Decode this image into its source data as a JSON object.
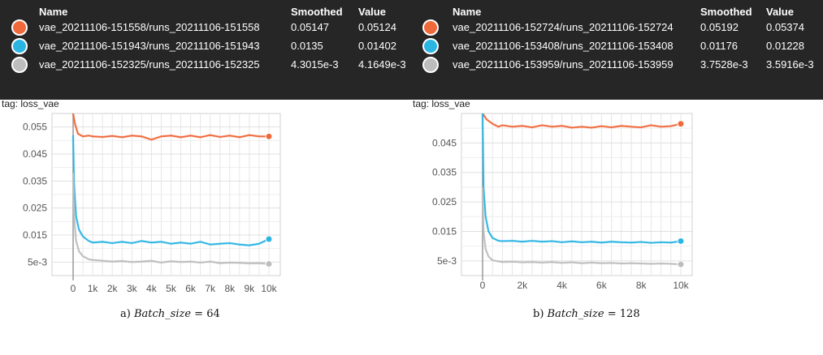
{
  "panels": [
    {
      "tag_title": "loss_vae",
      "tag_line": "tag: loss_vae",
      "caption_prefix": "a)",
      "caption_var": "Batch_size",
      "caption_eq": "= 64",
      "tooltip": {
        "headers": {
          "name": "Name",
          "smoothed": "Smoothed",
          "value": "Value"
        },
        "rows": [
          {
            "name": "vae_20211106-151558/runs_20211106-151558",
            "smoothed": "0.05147",
            "value": "0.05124",
            "color": "#f0693b"
          },
          {
            "name": "vae_20211106-151943/runs_20211106-151943",
            "smoothed": "0.0135",
            "value": "0.01402",
            "color": "#2bb5e3"
          },
          {
            "name": "vae_20211106-152325/runs_20211106-152325",
            "smoothed": "4.3015e-3",
            "value": "4.1649e-3",
            "color": "#bdbdbd"
          }
        ]
      }
    },
    {
      "tag_title": "loss_vae",
      "tag_line": "tag: loss_vae",
      "caption_prefix": "b)",
      "caption_var": "Batch_size",
      "caption_eq": "= 128",
      "tooltip": {
        "headers": {
          "name": "Name",
          "smoothed": "Smoothed",
          "value": "Value"
        },
        "rows": [
          {
            "name": "vae_20211106-152724/runs_20211106-152724",
            "smoothed": "0.05192",
            "value": "0.05374",
            "color": "#f0693b"
          },
          {
            "name": "vae_20211106-153408/runs_20211106-153408",
            "smoothed": "0.01176",
            "value": "0.01228",
            "color": "#2bb5e3"
          },
          {
            "name": "vae_20211106-153959/runs_20211106-153959",
            "smoothed": "3.7528e-3",
            "value": "3.5916e-3",
            "color": "#bdbdbd"
          }
        ]
      }
    }
  ],
  "chart_data": [
    {
      "type": "line",
      "title": "loss_vae",
      "xlabel": "",
      "ylabel": "",
      "xlim": [
        0,
        10000
      ],
      "ylim": [
        0,
        0.06
      ],
      "x_ticks": [
        0,
        1000,
        2000,
        3000,
        4000,
        5000,
        6000,
        7000,
        8000,
        9000,
        10000
      ],
      "x_tick_labels": [
        "0",
        "1k",
        "2k",
        "3k",
        "4k",
        "5k",
        "6k",
        "7k",
        "8k",
        "9k",
        "10k"
      ],
      "y_ticks": [
        0.005,
        0.015,
        0.025,
        0.035,
        0.045,
        0.055
      ],
      "y_tick_labels": [
        "5e-3",
        "0.015",
        "0.025",
        "0.035",
        "0.045",
        "0.055"
      ],
      "grid": true,
      "series": [
        {
          "name": "vae_20211106-151558/runs_20211106-151558",
          "color": "#f0693b",
          "x": [
            0,
            100,
            250,
            500,
            800,
            1000,
            1500,
            2000,
            2500,
            3000,
            3500,
            4000,
            4500,
            5000,
            5500,
            6000,
            6500,
            7000,
            7500,
            8000,
            8500,
            9000,
            9500,
            10000
          ],
          "y": [
            0.06,
            0.056,
            0.0525,
            0.0515,
            0.0518,
            0.0515,
            0.0513,
            0.0517,
            0.0512,
            0.0518,
            0.0515,
            0.0503,
            0.0515,
            0.0518,
            0.0512,
            0.0518,
            0.0512,
            0.052,
            0.0513,
            0.0518,
            0.0512,
            0.052,
            0.0515,
            0.0515
          ]
        },
        {
          "name": "vae_20211106-151943/runs_20211106-151943",
          "color": "#2bb5e3",
          "x": [
            0,
            50,
            150,
            300,
            500,
            800,
            1000,
            1500,
            2000,
            2500,
            3000,
            3500,
            4000,
            4500,
            5000,
            5500,
            6000,
            6500,
            7000,
            7500,
            8000,
            8500,
            9000,
            9500,
            10000
          ],
          "y": [
            0.052,
            0.034,
            0.022,
            0.017,
            0.0145,
            0.0128,
            0.0122,
            0.0125,
            0.012,
            0.0125,
            0.012,
            0.0128,
            0.0122,
            0.0125,
            0.0118,
            0.0122,
            0.0118,
            0.0125,
            0.0115,
            0.0118,
            0.012,
            0.0115,
            0.0112,
            0.0118,
            0.0135
          ]
        },
        {
          "name": "vae_20211106-152325/runs_20211106-152325",
          "color": "#bdbdbd",
          "x": [
            0,
            50,
            150,
            300,
            500,
            800,
            1000,
            1500,
            2000,
            2500,
            3000,
            3500,
            4000,
            4500,
            5000,
            5500,
            6000,
            6500,
            7000,
            7500,
            8000,
            8500,
            9000,
            9500,
            10000
          ],
          "y": [
            0.038,
            0.022,
            0.013,
            0.009,
            0.0072,
            0.006,
            0.0058,
            0.0055,
            0.0052,
            0.0054,
            0.005,
            0.0052,
            0.0055,
            0.0048,
            0.0053,
            0.005,
            0.0052,
            0.0048,
            0.0052,
            0.0046,
            0.0048,
            0.0047,
            0.0045,
            0.0046,
            0.0043
          ]
        }
      ]
    },
    {
      "type": "line",
      "title": "loss_vae",
      "xlabel": "",
      "ylabel": "",
      "xlim": [
        0,
        10000
      ],
      "ylim": [
        0,
        0.055
      ],
      "x_ticks": [
        0,
        2000,
        4000,
        6000,
        8000,
        10000
      ],
      "x_tick_labels": [
        "0",
        "2k",
        "4k",
        "6k",
        "8k",
        "10k"
      ],
      "y_ticks": [
        0.005,
        0.015,
        0.025,
        0.035,
        0.045
      ],
      "y_tick_labels": [
        "5e-3",
        "0.015",
        "0.025",
        "0.035",
        "0.045"
      ],
      "grid": true,
      "series": [
        {
          "name": "vae_20211106-152724/runs_20211106-152724",
          "color": "#f0693b",
          "x": [
            0,
            200,
            500,
            800,
            1000,
            1500,
            2000,
            2500,
            3000,
            3500,
            4000,
            4500,
            5000,
            5500,
            6000,
            6500,
            7000,
            7500,
            8000,
            8500,
            9000,
            9500,
            10000
          ],
          "y": [
            0.055,
            0.053,
            0.0515,
            0.0505,
            0.051,
            0.0505,
            0.0508,
            0.0503,
            0.051,
            0.0505,
            0.0508,
            0.0502,
            0.0505,
            0.0502,
            0.0507,
            0.0503,
            0.0508,
            0.0505,
            0.0503,
            0.051,
            0.0505,
            0.0507,
            0.0515
          ]
        },
        {
          "name": "vae_20211106-153408/runs_20211106-153408",
          "color": "#2bb5e3",
          "x": [
            0,
            50,
            150,
            300,
            500,
            800,
            1000,
            1500,
            2000,
            2500,
            3000,
            3500,
            4000,
            4500,
            5000,
            5500,
            6000,
            6500,
            7000,
            7500,
            8000,
            8500,
            9000,
            9500,
            10000
          ],
          "y": [
            0.055,
            0.03,
            0.02,
            0.015,
            0.0128,
            0.0118,
            0.0117,
            0.0118,
            0.0115,
            0.0118,
            0.0115,
            0.0117,
            0.0113,
            0.0116,
            0.0113,
            0.0115,
            0.0112,
            0.0115,
            0.0113,
            0.0112,
            0.0114,
            0.0111,
            0.0113,
            0.0112,
            0.0117
          ]
        },
        {
          "name": "vae_20211106-153959/runs_20211106-153959",
          "color": "#bdbdbd",
          "x": [
            0,
            50,
            150,
            300,
            500,
            800,
            1000,
            1500,
            2000,
            2500,
            3000,
            3500,
            4000,
            4500,
            5000,
            5500,
            6000,
            6500,
            7000,
            7500,
            8000,
            8500,
            9000,
            9500,
            10000
          ],
          "y": [
            0.03,
            0.015,
            0.009,
            0.0065,
            0.0052,
            0.0048,
            0.0046,
            0.0047,
            0.0045,
            0.0046,
            0.0044,
            0.0046,
            0.0043,
            0.0045,
            0.0042,
            0.0044,
            0.0042,
            0.0043,
            0.0041,
            0.0042,
            0.0041,
            0.004,
            0.0041,
            0.004,
            0.0038
          ]
        }
      ]
    }
  ]
}
